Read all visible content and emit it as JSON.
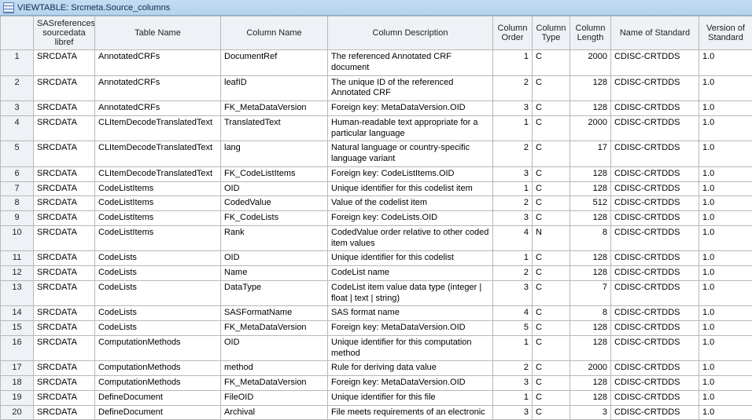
{
  "window": {
    "title": "VIEWTABLE: Srcmeta.Source_columns"
  },
  "table": {
    "columns": [
      {
        "key": "row",
        "label": "",
        "col_class": "c-row",
        "cell_class": "rowhdr"
      },
      {
        "key": "libref",
        "label": "SASreferences sourcedata libref",
        "col_class": "c-lib",
        "cell_class": ""
      },
      {
        "key": "tname",
        "label": "Table Name",
        "col_class": "c-tbl",
        "cell_class": ""
      },
      {
        "key": "cname",
        "label": "Column Name",
        "col_class": "c-colnm",
        "cell_class": ""
      },
      {
        "key": "cdesc",
        "label": "Column Description",
        "col_class": "c-desc",
        "cell_class": ""
      },
      {
        "key": "corder",
        "label": "Column Order",
        "col_class": "c-order",
        "cell_class": "num"
      },
      {
        "key": "ctype",
        "label": "Column Type",
        "col_class": "c-type",
        "cell_class": ""
      },
      {
        "key": "clen",
        "label": "Column Length",
        "col_class": "c-len",
        "cell_class": "num"
      },
      {
        "key": "std",
        "label": "Name of Standard",
        "col_class": "c-std",
        "cell_class": ""
      },
      {
        "key": "ver",
        "label": "Version of Standard",
        "col_class": "c-ver",
        "cell_class": ""
      }
    ],
    "rows": [
      {
        "row": "1",
        "libref": "SRCDATA",
        "tname": "AnnotatedCRFs",
        "cname": "DocumentRef",
        "cdesc": "The referenced Annotated CRF document",
        "corder": "1",
        "ctype": "C",
        "clen": "2000",
        "std": "CDISC-CRTDDS",
        "ver": "1.0"
      },
      {
        "row": "2",
        "libref": "SRCDATA",
        "tname": "AnnotatedCRFs",
        "cname": "leafID",
        "cdesc": "The unique ID of the referenced Annotated CRF",
        "corder": "2",
        "ctype": "C",
        "clen": "128",
        "std": "CDISC-CRTDDS",
        "ver": "1.0"
      },
      {
        "row": "3",
        "libref": "SRCDATA",
        "tname": "AnnotatedCRFs",
        "cname": "FK_MetaDataVersion",
        "cdesc": "Foreign key: MetaDataVersion.OID",
        "corder": "3",
        "ctype": "C",
        "clen": "128",
        "std": "CDISC-CRTDDS",
        "ver": "1.0"
      },
      {
        "row": "4",
        "libref": "SRCDATA",
        "tname": "CLItemDecodeTranslatedText",
        "cname": "TranslatedText",
        "cdesc": "Human-readable text appropriate for a particular language",
        "corder": "1",
        "ctype": "C",
        "clen": "2000",
        "std": "CDISC-CRTDDS",
        "ver": "1.0"
      },
      {
        "row": "5",
        "libref": "SRCDATA",
        "tname": "CLItemDecodeTranslatedText",
        "cname": "lang",
        "cdesc": "Natural language or country-specific language variant",
        "corder": "2",
        "ctype": "C",
        "clen": "17",
        "std": "CDISC-CRTDDS",
        "ver": "1.0"
      },
      {
        "row": "6",
        "libref": "SRCDATA",
        "tname": "CLItemDecodeTranslatedText",
        "cname": "FK_CodeListItems",
        "cdesc": "Foreign key: CodeListItems.OID",
        "corder": "3",
        "ctype": "C",
        "clen": "128",
        "std": "CDISC-CRTDDS",
        "ver": "1.0"
      },
      {
        "row": "7",
        "libref": "SRCDATA",
        "tname": "CodeListItems",
        "cname": "OID",
        "cdesc": "Unique identifier for this codelist item",
        "corder": "1",
        "ctype": "C",
        "clen": "128",
        "std": "CDISC-CRTDDS",
        "ver": "1.0"
      },
      {
        "row": "8",
        "libref": "SRCDATA",
        "tname": "CodeListItems",
        "cname": "CodedValue",
        "cdesc": "Value of the codelist item",
        "corder": "2",
        "ctype": "C",
        "clen": "512",
        "std": "CDISC-CRTDDS",
        "ver": "1.0"
      },
      {
        "row": "9",
        "libref": "SRCDATA",
        "tname": "CodeListItems",
        "cname": "FK_CodeLists",
        "cdesc": "Foreign key: CodeLists.OID",
        "corder": "3",
        "ctype": "C",
        "clen": "128",
        "std": "CDISC-CRTDDS",
        "ver": "1.0"
      },
      {
        "row": "10",
        "libref": "SRCDATA",
        "tname": "CodeListItems",
        "cname": "Rank",
        "cdesc": "CodedValue order relative to other coded item values",
        "corder": "4",
        "ctype": "N",
        "clen": "8",
        "std": "CDISC-CRTDDS",
        "ver": "1.0"
      },
      {
        "row": "11",
        "libref": "SRCDATA",
        "tname": "CodeLists",
        "cname": "OID",
        "cdesc": "Unique identifier for this codelist",
        "corder": "1",
        "ctype": "C",
        "clen": "128",
        "std": "CDISC-CRTDDS",
        "ver": "1.0"
      },
      {
        "row": "12",
        "libref": "SRCDATA",
        "tname": "CodeLists",
        "cname": "Name",
        "cdesc": "CodeList name",
        "corder": "2",
        "ctype": "C",
        "clen": "128",
        "std": "CDISC-CRTDDS",
        "ver": "1.0"
      },
      {
        "row": "13",
        "libref": "SRCDATA",
        "tname": "CodeLists",
        "cname": "DataType",
        "cdesc": "CodeList item value data type (integer | float | text | string)",
        "corder": "3",
        "ctype": "C",
        "clen": "7",
        "std": "CDISC-CRTDDS",
        "ver": "1.0"
      },
      {
        "row": "14",
        "libref": "SRCDATA",
        "tname": "CodeLists",
        "cname": "SASFormatName",
        "cdesc": "SAS format name",
        "corder": "4",
        "ctype": "C",
        "clen": "8",
        "std": "CDISC-CRTDDS",
        "ver": "1.0"
      },
      {
        "row": "15",
        "libref": "SRCDATA",
        "tname": "CodeLists",
        "cname": "FK_MetaDataVersion",
        "cdesc": "Foreign key: MetaDataVersion.OID",
        "corder": "5",
        "ctype": "C",
        "clen": "128",
        "std": "CDISC-CRTDDS",
        "ver": "1.0"
      },
      {
        "row": "16",
        "libref": "SRCDATA",
        "tname": "ComputationMethods",
        "cname": "OID",
        "cdesc": "Unique identifier for this computation method",
        "corder": "1",
        "ctype": "C",
        "clen": "128",
        "std": "CDISC-CRTDDS",
        "ver": "1.0"
      },
      {
        "row": "17",
        "libref": "SRCDATA",
        "tname": "ComputationMethods",
        "cname": "method",
        "cdesc": "Rule for deriving data value",
        "corder": "2",
        "ctype": "C",
        "clen": "2000",
        "std": "CDISC-CRTDDS",
        "ver": "1.0"
      },
      {
        "row": "18",
        "libref": "SRCDATA",
        "tname": "ComputationMethods",
        "cname": "FK_MetaDataVersion",
        "cdesc": "Foreign key: MetaDataVersion.OID",
        "corder": "3",
        "ctype": "C",
        "clen": "128",
        "std": "CDISC-CRTDDS",
        "ver": "1.0"
      },
      {
        "row": "19",
        "libref": "SRCDATA",
        "tname": "DefineDocument",
        "cname": "FileOID",
        "cdesc": "Unique identifier for this file",
        "corder": "1",
        "ctype": "C",
        "clen": "128",
        "std": "CDISC-CRTDDS",
        "ver": "1.0"
      },
      {
        "row": "20",
        "libref": "SRCDATA",
        "tname": "DefineDocument",
        "cname": "Archival",
        "cdesc": "File meets requirements of an electronic",
        "corder": "3",
        "ctype": "C",
        "clen": "3",
        "std": "CDISC-CRTDDS",
        "ver": "1.0"
      }
    ]
  }
}
